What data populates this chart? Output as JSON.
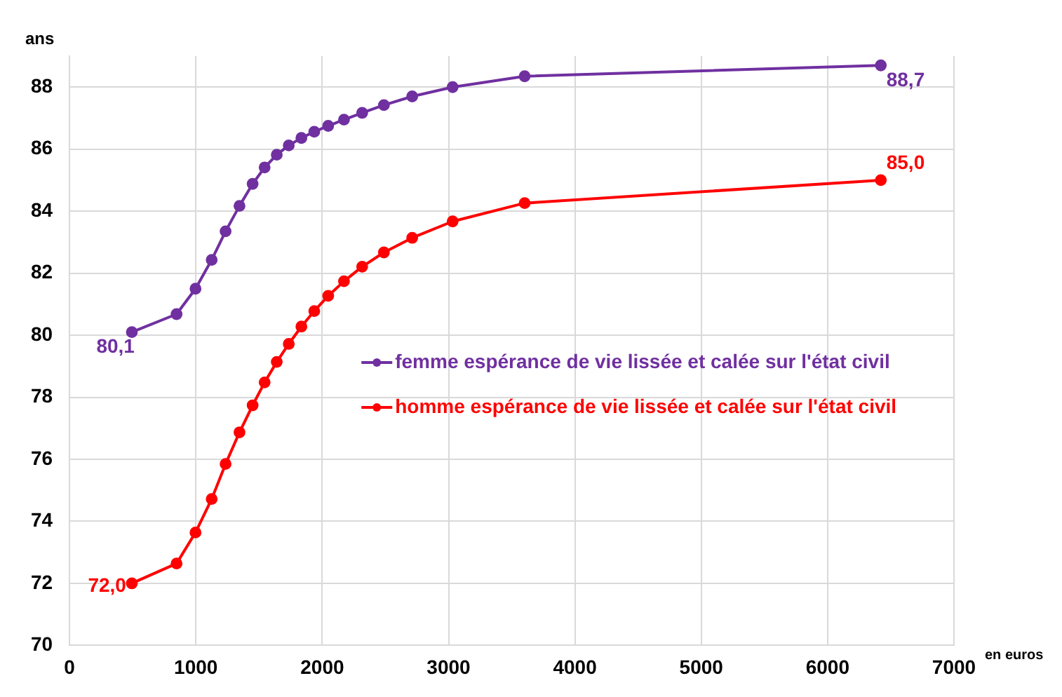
{
  "chart_data": {
    "type": "line",
    "xlabel": "en euros",
    "ylabel": "ans",
    "x": [
      493,
      847,
      997,
      1125,
      1235,
      1345,
      1449,
      1544,
      1640,
      1735,
      1835,
      1937,
      2047,
      2172,
      2316,
      2488,
      2712,
      3032,
      3602,
      6421
    ],
    "series": [
      {
        "name": "femme espérance de vie lissée et calée sur l'état civil",
        "color": "#7030a0",
        "values": [
          80.1,
          80.68,
          81.5,
          82.43,
          83.35,
          84.17,
          84.88,
          85.41,
          85.82,
          86.12,
          86.36,
          86.56,
          86.75,
          86.95,
          87.17,
          87.42,
          87.7,
          88.0,
          88.35,
          88.7
        ],
        "value_labels": [
          "80,1",
          null,
          null,
          null,
          null,
          null,
          null,
          null,
          null,
          null,
          null,
          null,
          null,
          null,
          null,
          null,
          null,
          null,
          null,
          "88,7"
        ]
      },
      {
        "name": "homme espérance de vie lissée et calée sur l'état civil",
        "color": "#ff0000",
        "values": [
          72.0,
          72.64,
          73.64,
          74.72,
          75.85,
          76.87,
          77.74,
          78.48,
          79.14,
          79.72,
          80.28,
          80.78,
          81.27,
          81.74,
          82.21,
          82.67,
          83.14,
          83.67,
          84.26,
          85.0
        ],
        "value_labels": [
          "72,0",
          null,
          null,
          null,
          null,
          null,
          null,
          null,
          null,
          null,
          null,
          null,
          null,
          null,
          null,
          null,
          null,
          null,
          null,
          "85,0"
        ]
      }
    ],
    "xlim": [
      0,
      7000
    ],
    "xticks": [
      0,
      1000,
      2000,
      3000,
      4000,
      5000,
      6000,
      7000
    ],
    "ylim": [
      70,
      89
    ],
    "yticks": [
      70,
      72,
      74,
      76,
      78,
      80,
      82,
      84,
      86,
      88
    ],
    "grid": true,
    "legend": "right",
    "marker": "circle",
    "line_style": "solid"
  }
}
